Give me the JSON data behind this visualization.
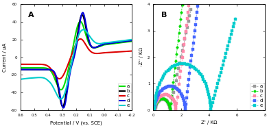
{
  "panel_A": {
    "title": "A",
    "xlabel": "Potential / V (vs. SCE)",
    "ylabel": "Current / μA",
    "xlim": [
      0.6,
      -0.2
    ],
    "ylim": [
      -60,
      60
    ],
    "xticks": [
      0.6,
      0.5,
      0.4,
      0.3,
      0.2,
      0.1,
      0.0,
      -0.1,
      -0.2
    ],
    "yticks": [
      -60,
      -40,
      -20,
      0,
      20,
      40,
      60
    ],
    "curves": [
      {
        "label": "a",
        "color": "#00dd00",
        "lw": 1.5
      },
      {
        "label": "b",
        "color": "#000000",
        "lw": 1.5
      },
      {
        "label": "c",
        "color": "#dd0000",
        "lw": 1.5
      },
      {
        "label": "d",
        "color": "#0000dd",
        "lw": 1.5
      },
      {
        "label": "e",
        "color": "#00cccc",
        "lw": 1.5
      }
    ]
  },
  "panel_B": {
    "title": "B",
    "xlabel": "Z' / KΩ",
    "ylabel": "-Z'' / KΩ",
    "xlim": [
      0,
      8
    ],
    "ylim": [
      0,
      4
    ],
    "xticks": [
      0,
      2,
      4,
      6,
      8
    ],
    "yticks": [
      0,
      1,
      2,
      3,
      4
    ],
    "curves": [
      {
        "label": "a",
        "color": "#999999",
        "marker": "s",
        "ms": 2.5
      },
      {
        "label": "b",
        "color": "#00dd00",
        "marker": "o",
        "ms": 2.5
      },
      {
        "label": "c",
        "color": "#ff88aa",
        "marker": "s",
        "ms": 2.5
      },
      {
        "label": "d",
        "color": "#4466ff",
        "marker": "s",
        "ms": 2.5
      },
      {
        "label": "e",
        "color": "#00cccc",
        "marker": "s",
        "ms": 2.5
      }
    ]
  }
}
